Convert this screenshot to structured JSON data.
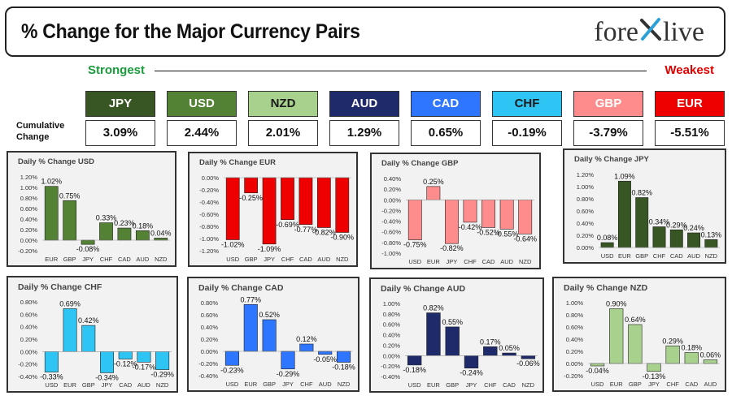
{
  "header": {
    "title": "% Change for the Major Currency Pairs",
    "logo_left": "fore",
    "logo_mark": "X",
    "logo_right": "live",
    "strongest_label": "Strongest",
    "weakest_label": "Weakest",
    "row_label": "Cumulative Change"
  },
  "colors": {
    "strongest": "#1a9b3c",
    "weakest": "#e00000"
  },
  "currencies": [
    {
      "code": "JPY",
      "value": "3.09%",
      "bg": "#375623",
      "fg": "#ffffff"
    },
    {
      "code": "USD",
      "value": "2.44%",
      "bg": "#548235",
      "fg": "#ffffff"
    },
    {
      "code": "NZD",
      "value": "2.01%",
      "bg": "#a9d18e",
      "fg": "#1a1a1a"
    },
    {
      "code": "AUD",
      "value": "1.29%",
      "bg": "#1f2a6b",
      "fg": "#ffffff"
    },
    {
      "code": "CAD",
      "value": "0.65%",
      "bg": "#2e75ff",
      "fg": "#ffffff"
    },
    {
      "code": "CHF",
      "value": "-0.19%",
      "bg": "#2ec5f5",
      "fg": "#1a1a1a"
    },
    {
      "code": "GBP",
      "value": "-3.79%",
      "bg": "#ff8c8c",
      "fg": "#ffffff"
    },
    {
      "code": "EUR",
      "value": "-5.51%",
      "bg": "#ee0000",
      "fg": "#ffffff"
    }
  ],
  "chart_data": [
    {
      "type": "bar",
      "title": "Daily % Change USD",
      "categories": [
        "EUR",
        "GBP",
        "JPY",
        "CHF",
        "CAD",
        "AUD",
        "NZD"
      ],
      "values": [
        1.02,
        0.75,
        -0.08,
        0.33,
        0.23,
        0.18,
        0.04
      ],
      "value_labels": [
        "1.02%",
        "0.75%",
        "-0.08%",
        "0.33%",
        "0.23%",
        "0.18%",
        "0.04%"
      ],
      "ylim": [
        -0.2,
        1.2
      ],
      "yticks": [
        "-0.20%",
        "0.00%",
        "0.20%",
        "0.40%",
        "0.60%",
        "0.80%",
        "1.00%",
        "1.20%"
      ],
      "color": "#548235"
    },
    {
      "type": "bar",
      "title": "Daily % Change EUR",
      "categories": [
        "USD",
        "GBP",
        "JPY",
        "CHF",
        "CAD",
        "AUD",
        "NZD"
      ],
      "values": [
        -1.02,
        -0.25,
        -1.09,
        -0.69,
        -0.77,
        -0.82,
        -0.9
      ],
      "value_labels": [
        "-1.02%",
        "-0.25%",
        "-1.09%",
        "-0.69%",
        "-0.77%",
        "-0.82%",
        "-0.90%"
      ],
      "ylim": [
        -1.2,
        0
      ],
      "yticks": [
        "-1.20%",
        "-1.00%",
        "-0.80%",
        "-0.60%",
        "-0.40%",
        "-0.20%",
        "0.00%"
      ],
      "color": "#ee0000"
    },
    {
      "type": "bar",
      "title": "Daily % Change GBP",
      "categories": [
        "USD",
        "EUR",
        "JPY",
        "CHF",
        "CAD",
        "AUD",
        "NZD"
      ],
      "values": [
        -0.75,
        0.25,
        -0.82,
        -0.42,
        -0.52,
        -0.55,
        -0.64
      ],
      "value_labels": [
        "-0.75%",
        "0.25%",
        "-0.82%",
        "-0.42%",
        "-0.52%",
        "-0.55%",
        "-0.64%"
      ],
      "ylim": [
        -1.0,
        0.4
      ],
      "yticks": [
        "-1.00%",
        "-0.80%",
        "-0.60%",
        "-0.40%",
        "-0.20%",
        "0.00%",
        "0.20%",
        "0.40%"
      ],
      "color": "#ff8c8c"
    },
    {
      "type": "bar",
      "title": "Daily % Change JPY",
      "categories": [
        "USD",
        "EUR",
        "GBP",
        "CHF",
        "CAD",
        "AUD",
        "NZD"
      ],
      "values": [
        0.08,
        1.09,
        0.82,
        0.34,
        0.29,
        0.24,
        0.13
      ],
      "value_labels": [
        "0.08%",
        "1.09%",
        "0.82%",
        "0.34%",
        "0.29%",
        "0.24%",
        "0.13%"
      ],
      "ylim": [
        0,
        1.2
      ],
      "yticks": [
        "0.00%",
        "0.20%",
        "0.40%",
        "0.60%",
        "0.80%",
        "1.00%",
        "1.20%"
      ],
      "color": "#375623"
    },
    {
      "type": "bar",
      "title": "Daily % Change CHF",
      "categories": [
        "USD",
        "EUR",
        "GBP",
        "JPY",
        "CAD",
        "AUD",
        "NZD"
      ],
      "values": [
        -0.33,
        0.69,
        0.42,
        -0.34,
        -0.12,
        -0.17,
        -0.29
      ],
      "value_labels": [
        "-0.33%",
        "0.69%",
        "0.42%",
        "-0.34%",
        "-0.12%",
        "-0.17%",
        "-0.29%"
      ],
      "ylim": [
        -0.4,
        0.8
      ],
      "yticks": [
        "-0.40%",
        "-0.20%",
        "0.00%",
        "0.20%",
        "0.40%",
        "0.60%",
        "0.80%"
      ],
      "color": "#2ec5f5"
    },
    {
      "type": "bar",
      "title": "Daily % Change CAD",
      "categories": [
        "USD",
        "EUR",
        "GBP",
        "JPY",
        "CHF",
        "AUD",
        "NZD"
      ],
      "values": [
        -0.23,
        0.77,
        0.52,
        -0.29,
        0.12,
        -0.05,
        -0.18
      ],
      "value_labels": [
        "-0.23%",
        "0.77%",
        "0.52%",
        "-0.29%",
        "0.12%",
        "-0.05%",
        "-0.18%"
      ],
      "ylim": [
        -0.4,
        0.8
      ],
      "yticks": [
        "-0.40%",
        "-0.20%",
        "0.00%",
        "0.20%",
        "0.40%",
        "0.60%",
        "0.80%"
      ],
      "color": "#2e75ff"
    },
    {
      "type": "bar",
      "title": "Daily % Change AUD",
      "categories": [
        "USD",
        "EUR",
        "GBP",
        "JPY",
        "CHF",
        "CAD",
        "NZD"
      ],
      "values": [
        -0.18,
        0.82,
        0.55,
        -0.24,
        0.17,
        0.05,
        -0.06
      ],
      "value_labels": [
        "-0.18%",
        "0.82%",
        "0.55%",
        "-0.24%",
        "0.17%",
        "0.05%",
        "-0.06%"
      ],
      "ylim": [
        -0.4,
        1.0
      ],
      "yticks": [
        "-0.40%",
        "-0.20%",
        "0.00%",
        "0.20%",
        "0.40%",
        "0.60%",
        "0.80%",
        "1.00%"
      ],
      "color": "#1f2a6b"
    },
    {
      "type": "bar",
      "title": "Daily % Change NZD",
      "categories": [
        "USD",
        "EUR",
        "GBP",
        "JPY",
        "CHF",
        "CAD",
        "AUD"
      ],
      "values": [
        -0.04,
        0.9,
        0.64,
        -0.13,
        0.29,
        0.18,
        0.06
      ],
      "value_labels": [
        "-0.04%",
        "0.90%",
        "0.64%",
        "-0.13%",
        "0.29%",
        "0.18%",
        "0.06%"
      ],
      "ylim": [
        -0.2,
        1.0
      ],
      "yticks": [
        "-0.20%",
        "0.00%",
        "0.20%",
        "0.40%",
        "0.60%",
        "0.80%",
        "1.00%"
      ],
      "color": "#a9d18e"
    }
  ]
}
